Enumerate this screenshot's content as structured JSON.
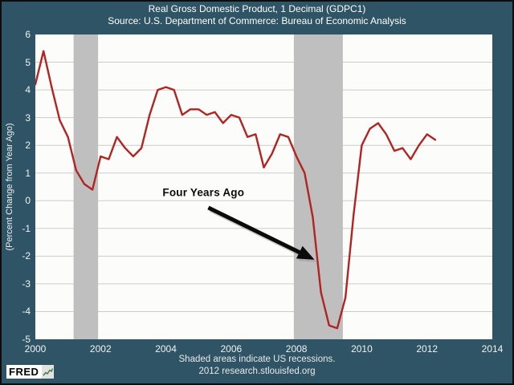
{
  "header": {
    "title": "Real Gross Domestic Product, 1 Decimal (GDPC1)",
    "subtitle": "Source: U.S. Department of Commerce: Bureau of Economic Analysis"
  },
  "y_axis_label": "(Percent Change from Year Ago)",
  "annotation": {
    "label": "Four Years Ago"
  },
  "footer": {
    "note": "Shaded areas indicate US recessions.",
    "credit": "2012 research.stlouisfed.org",
    "logo_text": "FRED",
    "logo_icon": "sparkline-icon"
  },
  "colors": {
    "background": "#2E5465",
    "plot_background": "#FCFCFA",
    "gridline": "#CCCCCC",
    "recession_shading": "#BFBFBF",
    "line": "#B22422",
    "axis_text": "#F2F2F2",
    "annotation": "#0B0B0B",
    "logo_green": "#3A7A3A"
  },
  "chart_data": {
    "type": "line",
    "title": "Real Gross Domestic Product, 1 Decimal (GDPC1)",
    "subtitle": "Source: U.S. Department of Commerce: Bureau of Economic Analysis",
    "xlabel": "",
    "ylabel": "(Percent Change from Year Ago)",
    "xlim": [
      2000,
      2014
    ],
    "ylim": [
      -5,
      6
    ],
    "x_ticks": [
      2000,
      2002,
      2004,
      2006,
      2008,
      2010,
      2012,
      2014
    ],
    "y_ticks": [
      6,
      5,
      4,
      3,
      2,
      1,
      0,
      -1,
      -2,
      -3,
      -4,
      -5
    ],
    "grid": "horizontal",
    "legend": "none",
    "recessions": [
      [
        2001.17,
        2001.92
      ],
      [
        2007.92,
        2009.42
      ]
    ],
    "series": [
      {
        "name": "Real GDP, Percent Change from Year Ago (quarterly)",
        "x": [
          2000.0,
          2000.25,
          2000.5,
          2000.75,
          2001.0,
          2001.25,
          2001.5,
          2001.75,
          2002.0,
          2002.25,
          2002.5,
          2002.75,
          2003.0,
          2003.25,
          2003.5,
          2003.75,
          2004.0,
          2004.25,
          2004.5,
          2004.75,
          2005.0,
          2005.25,
          2005.5,
          2005.75,
          2006.0,
          2006.25,
          2006.5,
          2006.75,
          2007.0,
          2007.25,
          2007.5,
          2007.75,
          2008.0,
          2008.25,
          2008.5,
          2008.75,
          2009.0,
          2009.25,
          2009.5,
          2009.75,
          2010.0,
          2010.25,
          2010.5,
          2010.75,
          2011.0,
          2011.25,
          2011.5,
          2011.75,
          2012.0,
          2012.25
        ],
        "values": [
          4.2,
          5.4,
          4.1,
          2.9,
          2.3,
          1.1,
          0.6,
          0.4,
          1.6,
          1.5,
          2.3,
          1.9,
          1.6,
          1.9,
          3.1,
          4.0,
          4.1,
          4.0,
          3.1,
          3.3,
          3.3,
          3.1,
          3.2,
          2.8,
          3.1,
          3.0,
          2.3,
          2.4,
          1.2,
          1.7,
          2.4,
          2.3,
          1.6,
          1.0,
          -0.6,
          -3.3,
          -4.5,
          -4.6,
          -3.5,
          -0.5,
          2.0,
          2.6,
          2.8,
          2.4,
          1.8,
          1.9,
          1.5,
          2.0,
          2.4,
          2.2
        ]
      }
    ],
    "annotation": {
      "text": "Four Years Ago",
      "text_at": [
        2005.15,
        0.3
      ],
      "arrow_from": [
        2005.3,
        -0.25
      ],
      "arrow_to": [
        2008.42,
        -2.05
      ]
    }
  }
}
